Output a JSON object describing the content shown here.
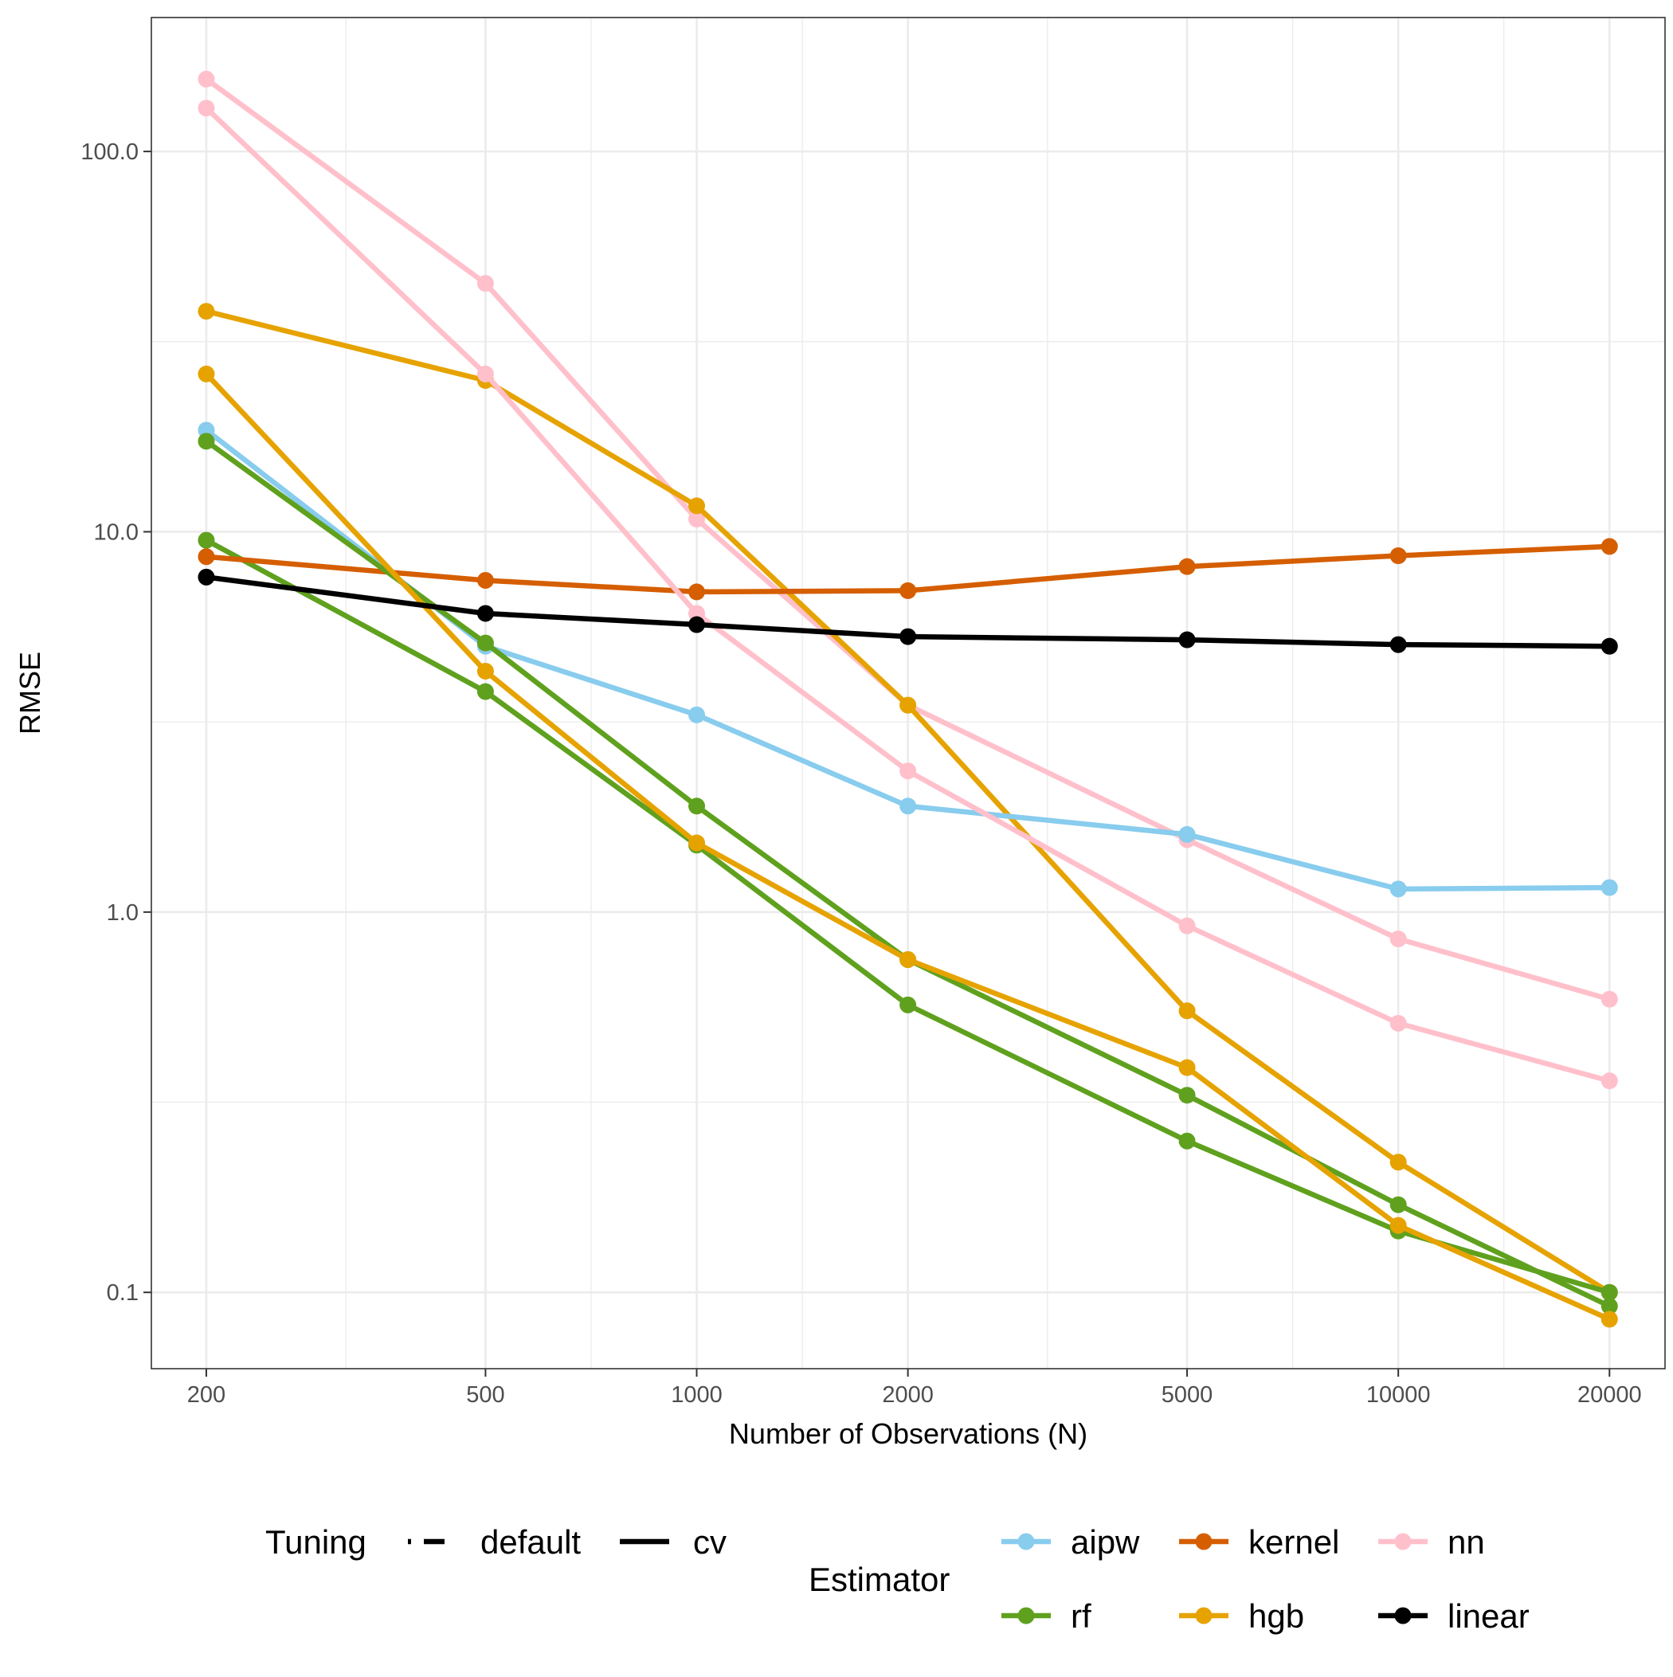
{
  "chart_data": {
    "type": "line",
    "x_scale": "log10",
    "y_scale": "log10",
    "xlabel": "Number of Observations (N)",
    "ylabel": "RMSE",
    "x": [
      200,
      500,
      1000,
      2000,
      5000,
      10000,
      20000
    ],
    "x_tick_labels": [
      "200",
      "500",
      "1000",
      "2000",
      "5000",
      "10000",
      "20000"
    ],
    "y_tick_values": [
      0.1,
      1,
      10,
      100
    ],
    "y_tick_labels": [
      "0.1",
      "1.0",
      "10.0",
      "100.0"
    ],
    "xlim": [
      167,
      24000
    ],
    "ylim": [
      0.063,
      225
    ],
    "grid": true,
    "legend_position": "bottom",
    "legend": {
      "tuning_title": "Tuning",
      "tuning_entries": [
        {
          "key": "default",
          "label": "default",
          "dash": "dotdash"
        },
        {
          "key": "cv",
          "label": "cv",
          "dash": "solid"
        }
      ],
      "estimator_title": "Estimator",
      "estimator_entries": [
        {
          "key": "aipw",
          "label": "aipw"
        },
        {
          "key": "kernel",
          "label": "kernel"
        },
        {
          "key": "nn",
          "label": "nn"
        },
        {
          "key": "rf",
          "label": "rf"
        },
        {
          "key": "hgb",
          "label": "hgb"
        },
        {
          "key": "linear",
          "label": "linear"
        }
      ]
    },
    "colors": {
      "aipw": "#88CCEE",
      "kernel": "#D55E00",
      "nn": "#FFC0CB",
      "rf": "#5FA11E",
      "hgb": "#E6A300",
      "linear": "#000000"
    },
    "series": [
      {
        "name": "nn default",
        "estimator": "nn",
        "tuning": "default",
        "values": [
          155,
          45,
          10.8,
          3.5,
          1.55,
          0.85,
          0.59
        ]
      },
      {
        "name": "hgb default",
        "estimator": "hgb",
        "tuning": "default",
        "values": [
          38,
          25,
          11.7,
          3.5,
          0.55,
          0.22,
          0.1
        ]
      },
      {
        "name": "rf default",
        "estimator": "rf",
        "tuning": "default",
        "values": [
          9.5,
          3.8,
          1.5,
          0.57,
          0.25,
          0.145,
          0.1
        ]
      },
      {
        "name": "aipw cv",
        "estimator": "aipw",
        "tuning": "cv",
        "values": [
          18.5,
          5.0,
          3.3,
          1.9,
          1.6,
          1.15,
          1.16
        ]
      },
      {
        "name": "kernel cv",
        "estimator": "kernel",
        "tuning": "cv",
        "values": [
          8.6,
          7.45,
          6.95,
          7.0,
          8.1,
          8.65,
          9.15
        ]
      },
      {
        "name": "nn cv",
        "estimator": "nn",
        "tuning": "cv",
        "values": [
          130,
          26,
          6.1,
          2.35,
          0.92,
          0.51,
          0.36
        ]
      },
      {
        "name": "rf cv",
        "estimator": "rf",
        "tuning": "cv",
        "values": [
          17.3,
          5.1,
          1.9,
          0.75,
          0.33,
          0.17,
          0.092
        ]
      },
      {
        "name": "hgb cv",
        "estimator": "hgb",
        "tuning": "cv",
        "values": [
          26,
          4.3,
          1.52,
          0.75,
          0.39,
          0.15,
          0.085
        ]
      },
      {
        "name": "linear cv",
        "estimator": "linear",
        "tuning": "cv",
        "values": [
          7.6,
          6.1,
          5.7,
          5.3,
          5.2,
          5.05,
          5.0
        ]
      }
    ]
  }
}
